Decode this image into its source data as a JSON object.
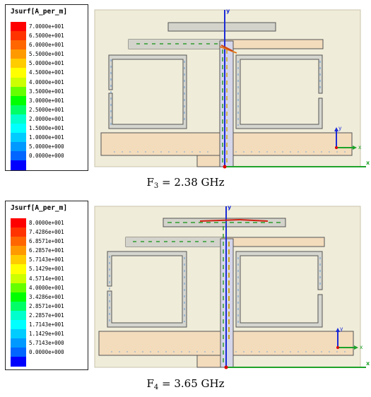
{
  "panels": [
    {
      "legend": {
        "title": "Jsurf[A_per_m]",
        "colors": [
          "#ff0000",
          "#ff3300",
          "#ff6600",
          "#ff9900",
          "#ffcc00",
          "#ffff00",
          "#ccff00",
          "#66ff00",
          "#00ff00",
          "#00ff66",
          "#00ffcc",
          "#00ffff",
          "#00ccff",
          "#0099ff",
          "#0066ff",
          "#0000ff"
        ],
        "labels": [
          "7.0000e+001",
          "6.5000e+001",
          "6.0000e+001",
          "5.5000e+001",
          "5.0000e+001",
          "4.5000e+001",
          "4.0000e+001",
          "3.5000e+001",
          "3.0000e+001",
          "2.5000e+001",
          "2.0000e+001",
          "1.5000e+001",
          "1.0000e+001",
          "5.0000e+000",
          "0.0000e+000"
        ]
      },
      "axes": {
        "x": "x",
        "y": "y"
      },
      "caption": {
        "main": "F",
        "sub": "3",
        "rest": " = 2.38 GHz"
      }
    },
    {
      "legend": {
        "title": "Jsurf[A_per_m]",
        "colors": [
          "#ff0000",
          "#ff3300",
          "#ff6600",
          "#ff9900",
          "#ffcc00",
          "#ffff00",
          "#ccff00",
          "#66ff00",
          "#00ff00",
          "#00ff66",
          "#00ffcc",
          "#00ffff",
          "#00ccff",
          "#0099ff",
          "#0066ff",
          "#0000ff"
        ],
        "labels": [
          "8.0000e+001",
          "7.4286e+001",
          "6.8571e+001",
          "6.2857e+001",
          "5.7143e+001",
          "5.1429e+001",
          "4.5714e+001",
          "4.0000e+001",
          "3.4286e+001",
          "2.8571e+001",
          "2.2857e+001",
          "1.7143e+001",
          "1.1429e+001",
          "5.7143e+000",
          "0.0000e+000"
        ]
      },
      "axes": {
        "x": "x",
        "y": "y"
      },
      "caption": {
        "main": "F",
        "sub": "4",
        "rest": " = 3.65 GHz"
      }
    }
  ]
}
